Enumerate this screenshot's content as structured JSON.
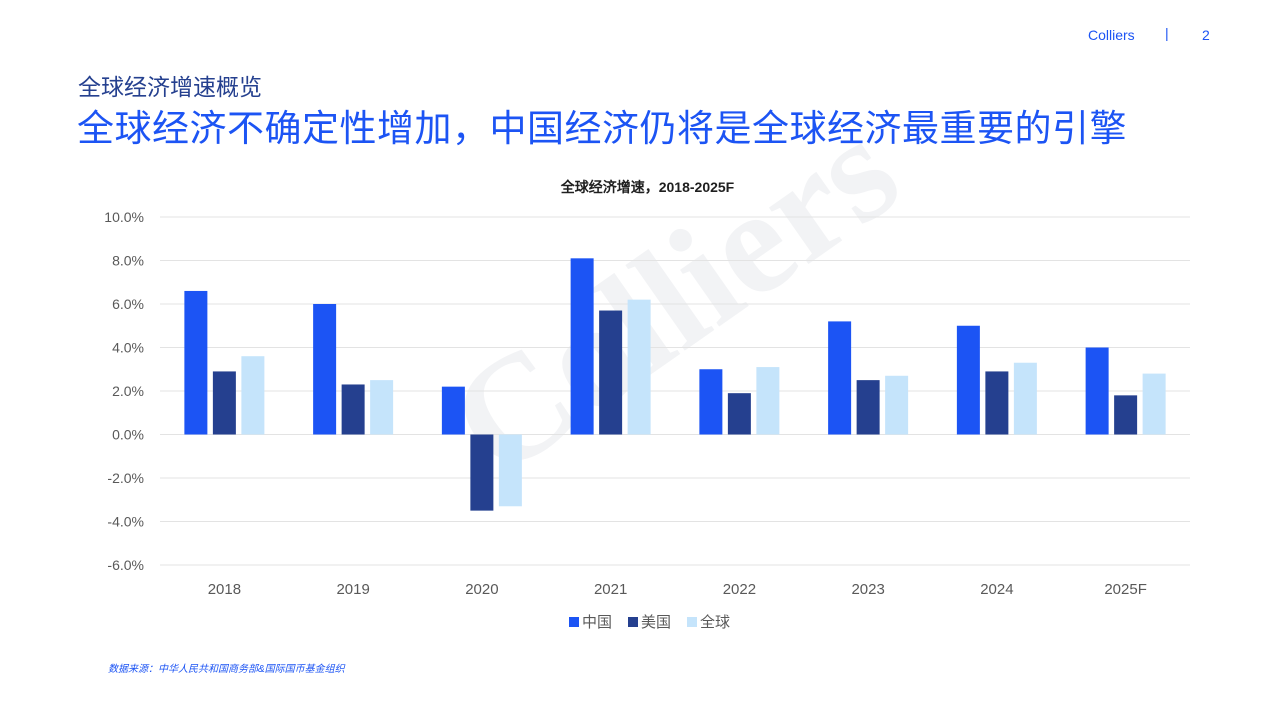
{
  "header": {
    "brand": "Colliers",
    "separator": "|",
    "page_number": "2"
  },
  "subtitle": "全球经济增速概览",
  "headline": "全球经济不确定性增加，中国经济仍将是全球经济最重要的引擎",
  "watermark": "Colliers",
  "source": "数据来源：中华人民共和国商务部&国际国币基金组织",
  "colors": {
    "china": "#1c54f4",
    "usa": "#25408f",
    "global": "#c5e4fb"
  },
  "chart_data": {
    "type": "bar",
    "title": "全球经济增速，2018-2025F",
    "categories": [
      "2018",
      "2019",
      "2020",
      "2021",
      "2022",
      "2023",
      "2024",
      "2025F"
    ],
    "series": [
      {
        "name": "中国",
        "values": [
          6.6,
          6.0,
          2.2,
          8.1,
          3.0,
          5.2,
          5.0,
          4.0
        ]
      },
      {
        "name": "美国",
        "values": [
          2.9,
          2.3,
          -3.5,
          5.7,
          1.9,
          2.5,
          2.9,
          1.8
        ]
      },
      {
        "name": "全球",
        "values": [
          3.6,
          2.5,
          -3.3,
          6.2,
          3.1,
          2.7,
          3.3,
          2.8
        ]
      }
    ],
    "ylim": [
      -6.0,
      10.0
    ],
    "yticks": [
      "10.0%",
      "8.0%",
      "6.0%",
      "4.0%",
      "2.0%",
      "0.0%",
      "-2.0%",
      "-4.0%",
      "-6.0%"
    ],
    "ytick_values": [
      10,
      8,
      6,
      4,
      2,
      0,
      -2,
      -4,
      -6
    ],
    "grid": true,
    "legend": "bottom"
  }
}
